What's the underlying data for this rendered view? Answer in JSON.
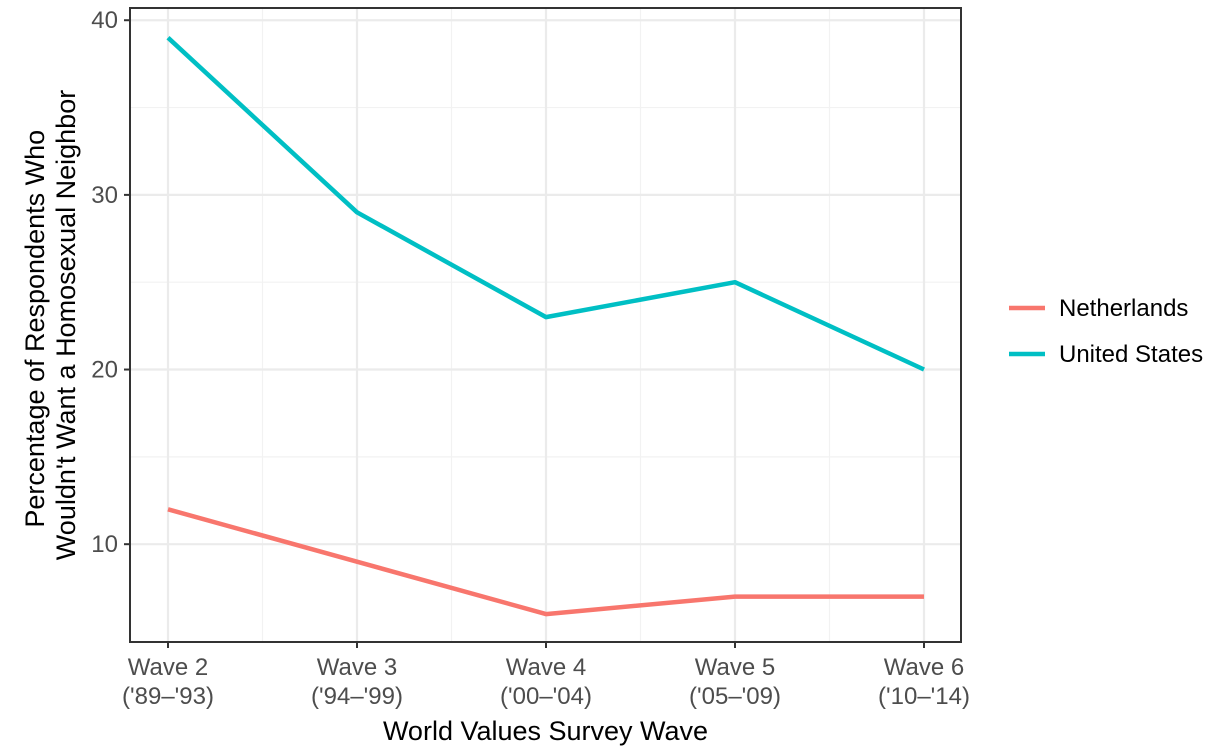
{
  "chart_data": {
    "type": "line",
    "xlabel": "World Values Survey Wave",
    "ylabel_lines": [
      "Percentage of Respondents Who",
      "Wouldn't Want a Homosexual Neighbor"
    ],
    "categories": [
      {
        "line1": "Wave 2",
        "line2": "('89–'93)"
      },
      {
        "line1": "Wave 3",
        "line2": "('94–'99)"
      },
      {
        "line1": "Wave 4",
        "line2": "('00–'04)"
      },
      {
        "line1": "Wave 5",
        "line2": "('05–'09)"
      },
      {
        "line1": "Wave 6",
        "line2": "('10–'14)"
      }
    ],
    "ylim": [
      4.4,
      40.7
    ],
    "yticks": [
      10,
      20,
      30,
      40
    ],
    "grid": true,
    "legend_position": "right",
    "series": [
      {
        "name": "Netherlands",
        "color": "#F8766D",
        "values": [
          12,
          9,
          6,
          7,
          7
        ]
      },
      {
        "name": "United States",
        "color": "#00BFC4",
        "values": [
          39,
          29,
          23,
          25,
          20
        ]
      }
    ]
  }
}
